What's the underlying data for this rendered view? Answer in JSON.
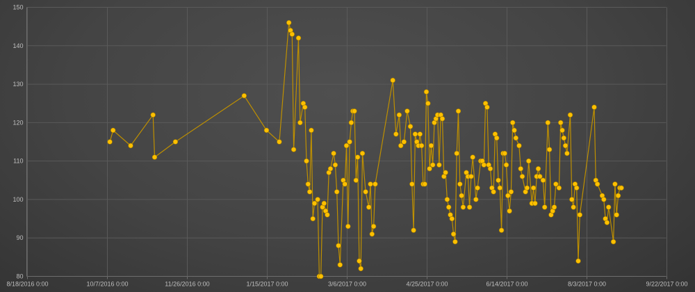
{
  "colors": {
    "background_outer": "#2a2a2a",
    "background_center": "#4f4f4f",
    "gridline": "#5a5a5a",
    "axis_line": "#6e6e6e",
    "tick_label": "#bfbfbf",
    "marker_fill": "#ffc000",
    "marker_edge": "#9a7700",
    "line_color": "#bf9000"
  },
  "chart_data": {
    "type": "line",
    "title": "",
    "legend": "none",
    "grid": true,
    "marker": "circle",
    "x_axis": {
      "min": "8/18/2016",
      "max": "9/22/2017",
      "tick_labels": [
        "8/18/2016 0:00",
        "10/7/2016 0:00",
        "11/26/2016 0:00",
        "1/15/2017 0:00",
        "3/6/2017 0:00",
        "4/25/2017 0:00",
        "6/14/2017 0:00",
        "8/3/2017 0:00",
        "9/22/2017 0:00"
      ]
    },
    "y_axis": {
      "min": 80,
      "max": 150,
      "step": 10,
      "tick_labels": [
        "80",
        "90",
        "100",
        "110",
        "120",
        "130",
        "140",
        "150"
      ]
    },
    "series": [
      {
        "color": "#ffc000",
        "line_color": "#bf9000",
        "points": [
          [
            "10/9/2016",
            115
          ],
          [
            "10/11/2016",
            118
          ],
          [
            "10/22/2016",
            114
          ],
          [
            "11/5/2016",
            122
          ],
          [
            "11/6/2016",
            111
          ],
          [
            "11/19/2016",
            115
          ],
          [
            "1/1/2017",
            127
          ],
          [
            "1/15/2017",
            118
          ],
          [
            "1/23/2017",
            115
          ],
          [
            "1/29/2017",
            146
          ],
          [
            "1/30/2017",
            144
          ],
          [
            "1/31/2017",
            143
          ],
          [
            "2/1/2017",
            113
          ],
          [
            "2/4/2017",
            142
          ],
          [
            "2/5/2017",
            120
          ],
          [
            "2/7/2017",
            125
          ],
          [
            "2/8/2017",
            124
          ],
          [
            "2/9/2017",
            110
          ],
          [
            "2/10/2017",
            104
          ],
          [
            "2/11/2017",
            102
          ],
          [
            "2/12/2017",
            118
          ],
          [
            "2/13/2017",
            95
          ],
          [
            "2/14/2017",
            99
          ],
          [
            "2/16/2017",
            100
          ],
          [
            "2/17/2017",
            80
          ],
          [
            "2/18/2017",
            80
          ],
          [
            "2/19/2017",
            98
          ],
          [
            "2/20/2017",
            99
          ],
          [
            "2/21/2017",
            97
          ],
          [
            "2/22/2017",
            96
          ],
          [
            "2/23/2017",
            107
          ],
          [
            "2/24/2017",
            108
          ],
          [
            "2/26/2017",
            112
          ],
          [
            "2/27/2017",
            109
          ],
          [
            "2/28/2017",
            102
          ],
          [
            "3/1/2017",
            88
          ],
          [
            "3/2/2017",
            83
          ],
          [
            "3/4/2017",
            105
          ],
          [
            "3/5/2017",
            104
          ],
          [
            "3/6/2017",
            114
          ],
          [
            "3/7/2017",
            93
          ],
          [
            "3/8/2017",
            115
          ],
          [
            "3/9/2017",
            120
          ],
          [
            "3/10/2017",
            123
          ],
          [
            "3/11/2017",
            123
          ],
          [
            "3/12/2017",
            105
          ],
          [
            "3/13/2017",
            111
          ],
          [
            "3/14/2017",
            84
          ],
          [
            "3/15/2017",
            82
          ],
          [
            "3/16/2017",
            112
          ],
          [
            "3/18/2017",
            102
          ],
          [
            "3/20/2017",
            98
          ],
          [
            "3/21/2017",
            104
          ],
          [
            "3/22/2017",
            91
          ],
          [
            "3/23/2017",
            93
          ],
          [
            "3/24/2017",
            104
          ],
          [
            "4/4/2017",
            131
          ],
          [
            "4/6/2017",
            117
          ],
          [
            "4/8/2017",
            122
          ],
          [
            "4/9/2017",
            114
          ],
          [
            "4/11/2017",
            115
          ],
          [
            "4/13/2017",
            123
          ],
          [
            "4/15/2017",
            119
          ],
          [
            "4/16/2017",
            104
          ],
          [
            "4/17/2017",
            92
          ],
          [
            "4/18/2017",
            117
          ],
          [
            "4/19/2017",
            115
          ],
          [
            "4/20/2017",
            114
          ],
          [
            "4/21/2017",
            117
          ],
          [
            "4/22/2017",
            114
          ],
          [
            "4/23/2017",
            104
          ],
          [
            "4/24/2017",
            104
          ],
          [
            "4/25/2017",
            128
          ],
          [
            "4/26/2017",
            125
          ],
          [
            "4/27/2017",
            108
          ],
          [
            "4/28/2017",
            114
          ],
          [
            "4/29/2017",
            109
          ],
          [
            "4/30/2017",
            120
          ],
          [
            "5/1/2017",
            121
          ],
          [
            "5/2/2017",
            122
          ],
          [
            "5/3/2017",
            109
          ],
          [
            "5/4/2017",
            122
          ],
          [
            "5/5/2017",
            121
          ],
          [
            "5/6/2017",
            106
          ],
          [
            "5/7/2017",
            107
          ],
          [
            "5/8/2017",
            100
          ],
          [
            "5/9/2017",
            98
          ],
          [
            "5/10/2017",
            96
          ],
          [
            "5/11/2017",
            95
          ],
          [
            "5/12/2017",
            91
          ],
          [
            "5/13/2017",
            89
          ],
          [
            "5/14/2017",
            112
          ],
          [
            "5/15/2017",
            123
          ],
          [
            "5/16/2017",
            104
          ],
          [
            "5/17/2017",
            101
          ],
          [
            "5/18/2017",
            98
          ],
          [
            "5/20/2017",
            107
          ],
          [
            "5/21/2017",
            106
          ],
          [
            "5/22/2017",
            98
          ],
          [
            "5/23/2017",
            106
          ],
          [
            "5/24/2017",
            111
          ],
          [
            "5/26/2017",
            100
          ],
          [
            "5/27/2017",
            103
          ],
          [
            "5/29/2017",
            110
          ],
          [
            "5/30/2017",
            110
          ],
          [
            "5/31/2017",
            109
          ],
          [
            "6/1/2017",
            125
          ],
          [
            "6/2/2017",
            124
          ],
          [
            "6/3/2017",
            109
          ],
          [
            "6/4/2017",
            108
          ],
          [
            "6/5/2017",
            103
          ],
          [
            "6/6/2017",
            102
          ],
          [
            "6/7/2017",
            117
          ],
          [
            "6/8/2017",
            116
          ],
          [
            "6/9/2017",
            105
          ],
          [
            "6/10/2017",
            103
          ],
          [
            "6/11/2017",
            92
          ],
          [
            "6/12/2017",
            112
          ],
          [
            "6/13/2017",
            112
          ],
          [
            "6/14/2017",
            109
          ],
          [
            "6/15/2017",
            101
          ],
          [
            "6/16/2017",
            97
          ],
          [
            "6/17/2017",
            102
          ],
          [
            "6/18/2017",
            120
          ],
          [
            "6/19/2017",
            118
          ],
          [
            "6/20/2017",
            116
          ],
          [
            "6/22/2017",
            114
          ],
          [
            "6/23/2017",
            108
          ],
          [
            "6/24/2017",
            106
          ],
          [
            "6/26/2017",
            102
          ],
          [
            "6/27/2017",
            103
          ],
          [
            "6/28/2017",
            110
          ],
          [
            "6/30/2017",
            99
          ],
          [
            "7/1/2017",
            103
          ],
          [
            "7/2/2017",
            99
          ],
          [
            "7/3/2017",
            106
          ],
          [
            "7/4/2017",
            108
          ],
          [
            "7/5/2017",
            106
          ],
          [
            "7/7/2017",
            105
          ],
          [
            "7/8/2017",
            98
          ],
          [
            "7/10/2017",
            120
          ],
          [
            "7/11/2017",
            113
          ],
          [
            "7/12/2017",
            96
          ],
          [
            "7/13/2017",
            97
          ],
          [
            "7/14/2017",
            98
          ],
          [
            "7/15/2017",
            104
          ],
          [
            "7/17/2017",
            103
          ],
          [
            "7/18/2017",
            120
          ],
          [
            "7/19/2017",
            118
          ],
          [
            "7/20/2017",
            116
          ],
          [
            "7/21/2017",
            114
          ],
          [
            "7/22/2017",
            112
          ],
          [
            "7/24/2017",
            122
          ],
          [
            "7/25/2017",
            100
          ],
          [
            "7/26/2017",
            98
          ],
          [
            "7/27/2017",
            104
          ],
          [
            "7/28/2017",
            103
          ],
          [
            "7/29/2017",
            84
          ],
          [
            "7/30/2017",
            96
          ],
          [
            "8/8/2017",
            124
          ],
          [
            "8/9/2017",
            105
          ],
          [
            "8/10/2017",
            104
          ],
          [
            "8/13/2017",
            101
          ],
          [
            "8/14/2017",
            100
          ],
          [
            "8/15/2017",
            95
          ],
          [
            "8/16/2017",
            94
          ],
          [
            "8/17/2017",
            98
          ],
          [
            "8/20/2017",
            89
          ],
          [
            "8/21/2017",
            104
          ],
          [
            "8/22/2017",
            96
          ],
          [
            "8/23/2017",
            101
          ],
          [
            "8/24/2017",
            103
          ],
          [
            "8/25/2017",
            103
          ]
        ]
      }
    ]
  }
}
